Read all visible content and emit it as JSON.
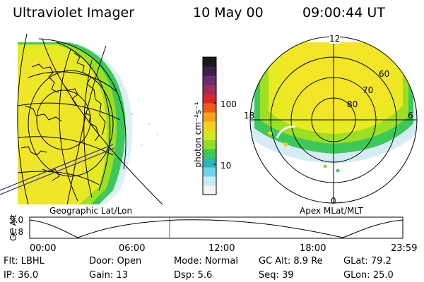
{
  "header": {
    "instrument": "Ultraviolet Imager",
    "date": "10 May 00",
    "time": "09:00:44 UT"
  },
  "colorbar": {
    "unit_label": "photon cm⁻²s⁻¹",
    "ticks": [
      "100",
      "10"
    ],
    "colors": [
      "#1a1a1a",
      "#3a1f4a",
      "#6a2c6e",
      "#a22c55",
      "#d8262c",
      "#ef5b1c",
      "#f7a21a",
      "#f1d31e",
      "#d5e820",
      "#8fde24",
      "#3cc95a",
      "#2bb6b8",
      "#6fd3f0",
      "#c8ecf6",
      "#f2f2f2"
    ]
  },
  "left_panel": {
    "label": "Geographic Lat/Lon"
  },
  "right_panel": {
    "label": "Apex  MLat/MLT",
    "mlt_labels": [
      "12",
      "6",
      "0",
      "18"
    ],
    "mlat_labels": [
      "60",
      "70",
      "80"
    ]
  },
  "timeline": {
    "ylabel": "GC Alt",
    "y_ticks": [
      "9.0",
      "1.8"
    ],
    "x_ticks": [
      "00:00",
      "06:00",
      "12:00",
      "18:00",
      "23:59"
    ],
    "current_time_fraction": 0.375
  },
  "info": {
    "row1": [
      {
        "label": "Flt:",
        "value": "LBHL"
      },
      {
        "label": "Door:",
        "value": "Open"
      },
      {
        "label": "Mode:",
        "value": "Normal"
      },
      {
        "label": "GC Alt:",
        "value": "8.9 Re"
      },
      {
        "label": "GLat:",
        "value": "79.2"
      }
    ],
    "row2": [
      {
        "label": "IP:",
        "value": "36.0"
      },
      {
        "label": "Gain:",
        "value": "13"
      },
      {
        "label": "Dsp:",
        "value": "5.6"
      },
      {
        "label": "Seq:",
        "value": "39"
      },
      {
        "label": "GLon:",
        "value": "25.0"
      }
    ]
  }
}
